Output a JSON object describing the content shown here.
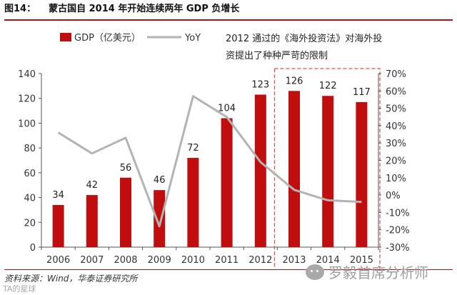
{
  "figure": {
    "number": "图14：",
    "title": "蒙古国自 2014 年开始连续两年 GDP 负增长"
  },
  "colors": {
    "bar": "#c00d0d",
    "line": "#b3b3b3",
    "highlight_border": "#e8463f",
    "axis": "#555555"
  },
  "chart_data": {
    "type": "bar",
    "title": "",
    "categories": [
      "2006",
      "2007",
      "2008",
      "2009",
      "2010",
      "2011",
      "2012",
      "2013",
      "2014",
      "2015"
    ],
    "series": [
      {
        "name": "GDP（亿美元）",
        "type": "bar",
        "axis": "left",
        "values": [
          34,
          42,
          56,
          46,
          72,
          104,
          123,
          126,
          122,
          117
        ],
        "labels": [
          "34",
          "42",
          "56",
          "46",
          "72",
          "104",
          "123",
          "126",
          "122",
          "117"
        ]
      },
      {
        "name": "YoY",
        "type": "line",
        "axis": "right",
        "values": [
          36,
          24,
          33,
          -18,
          57,
          45,
          19,
          3,
          -3,
          -4
        ]
      }
    ],
    "y_left": {
      "lim": [
        0,
        140
      ],
      "ticks": [
        0,
        20,
        40,
        60,
        80,
        100,
        120,
        140
      ],
      "tick_labels": [
        "0",
        "20",
        "40",
        "60",
        "80",
        "100",
        "120",
        "140"
      ]
    },
    "y_right": {
      "lim": [
        -30,
        70
      ],
      "ticks": [
        -30,
        -20,
        -10,
        0,
        10,
        20,
        30,
        40,
        50,
        60,
        70
      ],
      "tick_labels": [
        "-30%",
        "-20%",
        "-10%",
        "0%",
        "10%",
        "20%",
        "30%",
        "40%",
        "50%",
        "60%",
        "70%"
      ]
    },
    "highlight": {
      "from": "2013",
      "to": "2015"
    },
    "annotation_lines": [
      "2012 通过的《海外投资法》对海外投",
      "资提出了种种严苛的限制"
    ],
    "legend": {
      "placement": "top-left"
    }
  },
  "footer": {
    "source": "资料来源：Wind，华泰证券研究所",
    "watermark": "罗毅首席分析师",
    "corner_mark": "TA的星球"
  }
}
